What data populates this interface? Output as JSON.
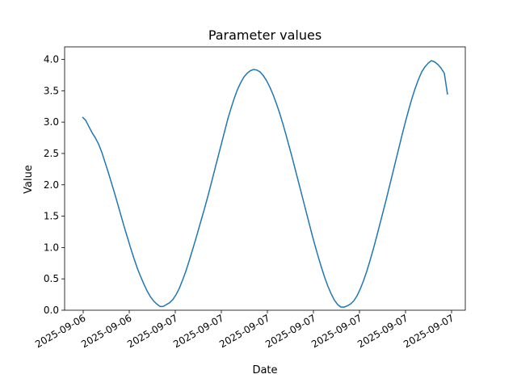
{
  "chart_data": {
    "type": "line",
    "title": "Parameter values",
    "xlabel": "Date",
    "ylabel": "Value",
    "ylim": [
      0,
      4.2
    ],
    "yticks": [
      0.0,
      0.5,
      1.0,
      1.5,
      2.0,
      2.5,
      3.0,
      3.5,
      4.0
    ],
    "ytick_labels": [
      "0.0",
      "0.5",
      "1.0",
      "1.5",
      "2.0",
      "2.5",
      "3.0",
      "3.5",
      "4.0"
    ],
    "xtick_labels": [
      "2025-09-06",
      "2025-09-06",
      "2025-09-07",
      "2025-09-07",
      "2025-09-07",
      "2025-09-07",
      "2025-09-07",
      "2025-09-07",
      "2025-09-07"
    ],
    "grid": false,
    "color": "#1f77b4",
    "series": [
      {
        "values": [
          3.08,
          3.03,
          2.93,
          2.83,
          2.75,
          2.65,
          2.52,
          2.36,
          2.2,
          2.03,
          1.86,
          1.68,
          1.5,
          1.32,
          1.15,
          0.98,
          0.82,
          0.67,
          0.54,
          0.42,
          0.31,
          0.22,
          0.15,
          0.1,
          0.06,
          0.06,
          0.09,
          0.12,
          0.17,
          0.25,
          0.35,
          0.48,
          0.62,
          0.78,
          0.95,
          1.12,
          1.3,
          1.48,
          1.66,
          1.85,
          2.05,
          2.25,
          2.45,
          2.65,
          2.85,
          3.05,
          3.22,
          3.38,
          3.52,
          3.63,
          3.72,
          3.78,
          3.82,
          3.84,
          3.83,
          3.8,
          3.74,
          3.66,
          3.56,
          3.44,
          3.3,
          3.15,
          2.98,
          2.8,
          2.61,
          2.42,
          2.22,
          2.02,
          1.82,
          1.62,
          1.42,
          1.22,
          1.03,
          0.85,
          0.68,
          0.52,
          0.38,
          0.26,
          0.16,
          0.09,
          0.05,
          0.05,
          0.07,
          0.1,
          0.15,
          0.23,
          0.34,
          0.47,
          0.62,
          0.79,
          0.97,
          1.16,
          1.36,
          1.56,
          1.76,
          1.97,
          2.18,
          2.39,
          2.6,
          2.81,
          3.01,
          3.2,
          3.38,
          3.54,
          3.68,
          3.8,
          3.88,
          3.94,
          3.98,
          3.96,
          3.92,
          3.86,
          3.78,
          3.44
        ]
      }
    ]
  }
}
